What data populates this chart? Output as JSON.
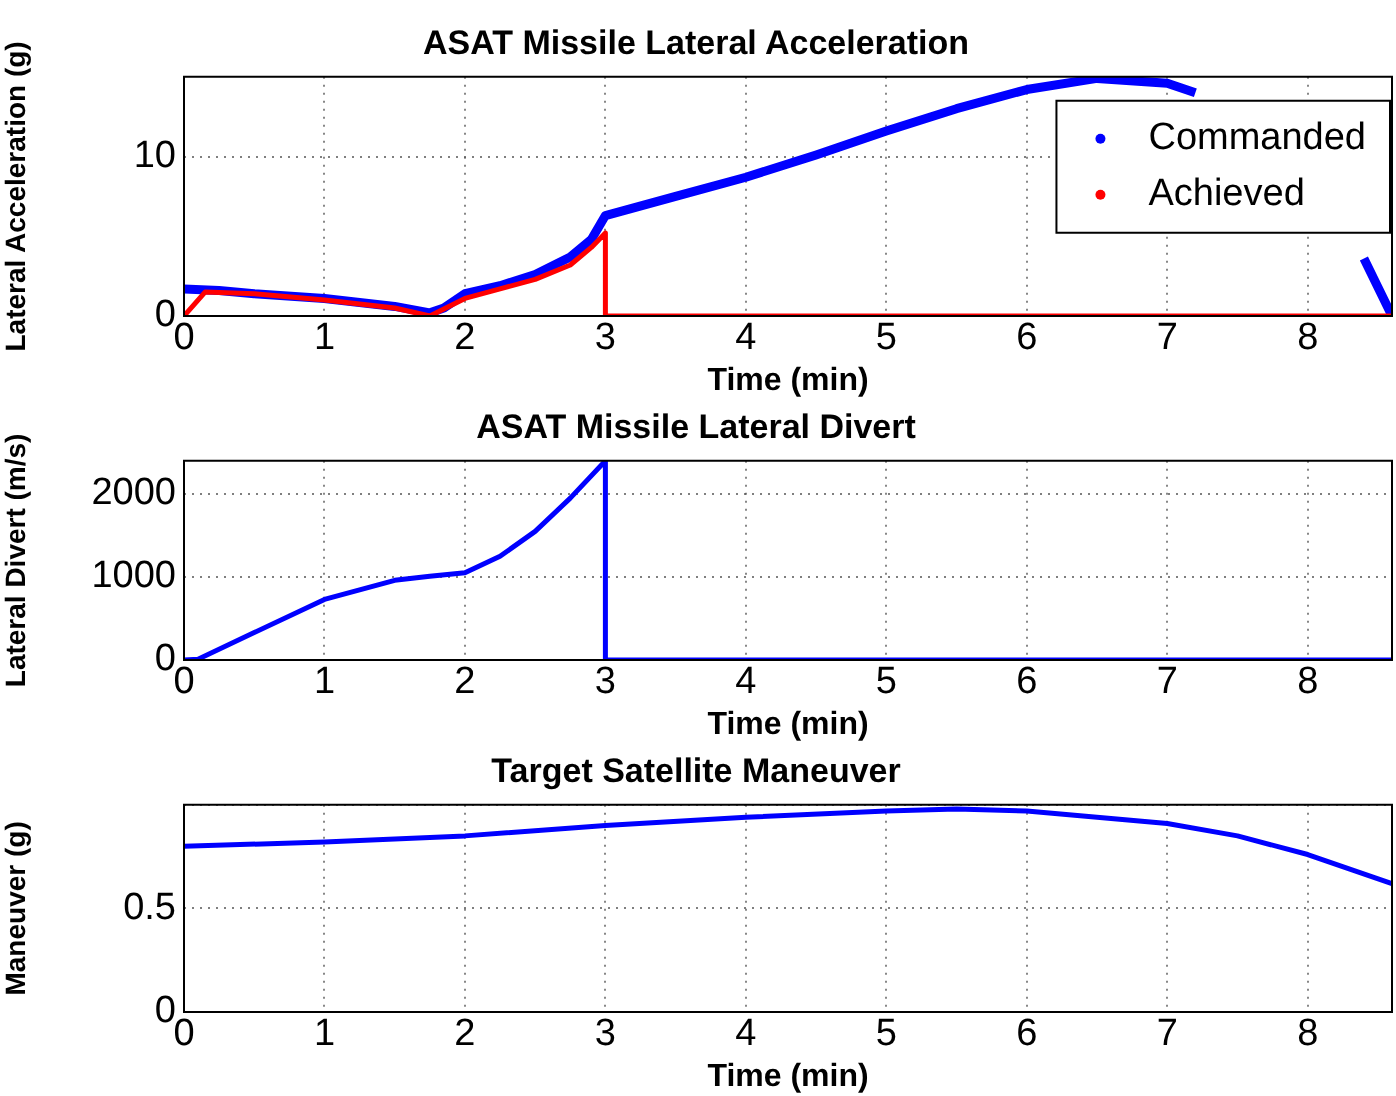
{
  "chart_data": [
    {
      "type": "line",
      "title": "ASAT Missile Lateral Acceleration",
      "xlabel": "Time (min)",
      "ylabel": "Lateral Acceleration (g)",
      "xlim": [
        0,
        8.6
      ],
      "xticks": [
        0,
        1,
        2,
        3,
        4,
        5,
        6,
        7,
        8
      ],
      "ylim": [
        0,
        15
      ],
      "yticks": [
        0,
        10
      ],
      "grid": true,
      "legend": "top right",
      "series": [
        {
          "name": "Commanded",
          "color": "#0000ff",
          "x": [
            0,
            0.25,
            0.5,
            1,
            1.5,
            1.75,
            1.85,
            2,
            2.25,
            2.5,
            2.75,
            2.9,
            3,
            3.5,
            4,
            4.5,
            5,
            5.5,
            6,
            6.5,
            7,
            7.2,
            7.6,
            8.1,
            8.4,
            8.6
          ],
          "values": [
            1.7,
            1.6,
            1.4,
            1.1,
            0.6,
            0.2,
            0.5,
            1.4,
            1.9,
            2.6,
            3.7,
            4.8,
            6.3,
            7.5,
            8.7,
            10.1,
            11.6,
            13,
            14.2,
            14.9,
            14.6,
            14.0,
            null,
            null,
            3.6,
            0
          ]
        },
        {
          "name": "Achieved",
          "color": "#ff0000",
          "x": [
            0,
            0.15,
            0.5,
            1,
            1.5,
            1.75,
            2,
            2.25,
            2.5,
            2.75,
            2.9,
            3,
            3,
            8.6
          ],
          "values": [
            0,
            1.5,
            1.4,
            1.0,
            0.5,
            0,
            1.1,
            1.7,
            2.3,
            3.2,
            4.3,
            5.2,
            0,
            0
          ]
        }
      ]
    },
    {
      "type": "line",
      "title": "ASAT Missile Lateral Divert",
      "xlabel": "Time (min)",
      "ylabel": "Lateral Divert (m/s)",
      "xlim": [
        0,
        8.6
      ],
      "xticks": [
        0,
        1,
        2,
        3,
        4,
        5,
        6,
        7,
        8
      ],
      "ylim": [
        0,
        2400
      ],
      "yticks": [
        0,
        1000,
        2000
      ],
      "grid": true,
      "series": [
        {
          "color": "#0000ff",
          "x": [
            0,
            0.1,
            0.5,
            1,
            1.5,
            1.75,
            2,
            2.25,
            2.5,
            2.75,
            3,
            3,
            8.6
          ],
          "values": [
            0,
            10,
            330,
            730,
            960,
            1010,
            1050,
            1250,
            1550,
            1950,
            2400,
            0,
            0
          ]
        }
      ]
    },
    {
      "type": "line",
      "title": "Target Satellite Maneuver",
      "xlabel": "Time (min)",
      "ylabel": "Maneuver (g)",
      "xlim": [
        0,
        8.6
      ],
      "xticks": [
        0,
        1,
        2,
        3,
        4,
        5,
        6,
        7,
        8
      ],
      "ylim": [
        0,
        1
      ],
      "yticks": [
        0,
        0.5,
        {
          "value": 1,
          "label": null
        }
      ],
      "grid": true,
      "series": [
        {
          "color": "#0000ff",
          "x": [
            0,
            1,
            2,
            3,
            4,
            5,
            5.5,
            6,
            7,
            7.5,
            8,
            8.6
          ],
          "values": [
            0.8,
            0.82,
            0.85,
            0.9,
            0.94,
            0.97,
            0.98,
            0.97,
            0.91,
            0.85,
            0.76,
            0.62
          ]
        }
      ]
    }
  ]
}
